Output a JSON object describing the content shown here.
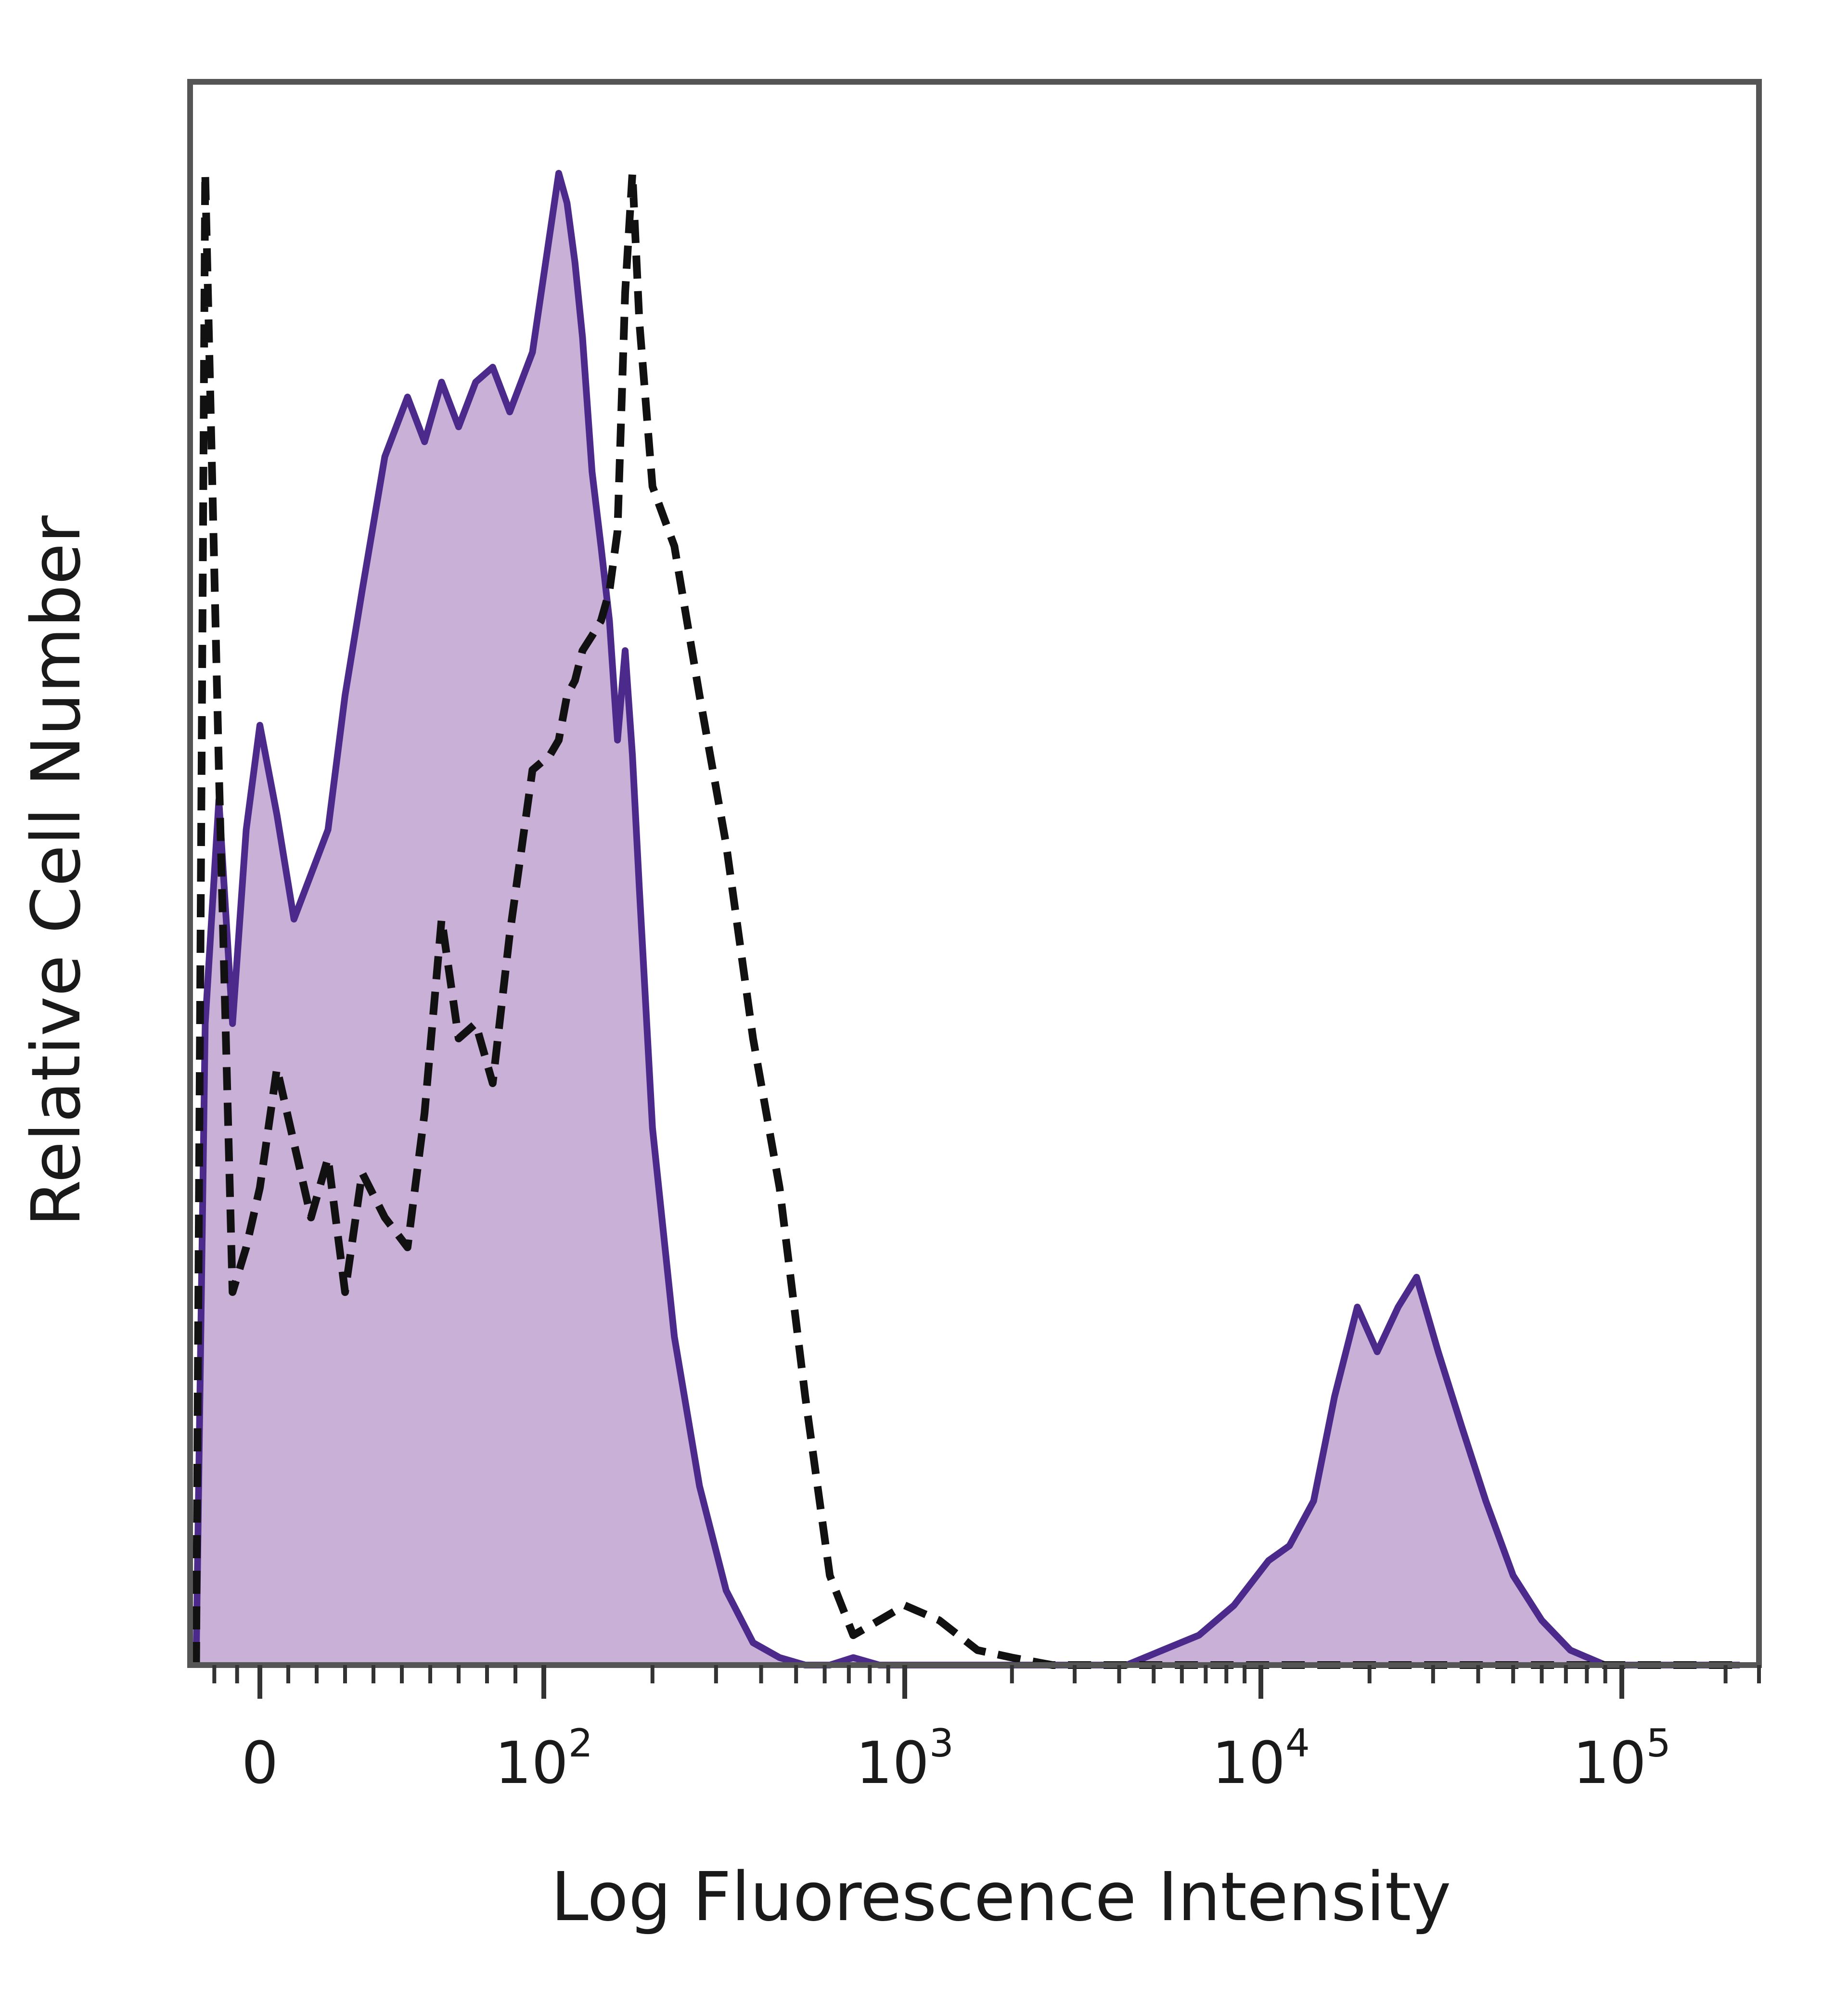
{
  "chart_data": {
    "type": "area",
    "title": "",
    "xlabel": "Log Fluorescence Intensity",
    "ylabel": "Relative Cell Number",
    "x_scale": "biexponential",
    "xlim": [
      -30,
      250000
    ],
    "ylim": [
      0,
      100
    ],
    "grid": false,
    "legend": "none",
    "x_ticks": [
      {
        "value": 0,
        "base": "0",
        "exp": ""
      },
      {
        "value": 100,
        "base": "10",
        "exp": "2"
      },
      {
        "value": 1000,
        "base": "10",
        "exp": "3"
      },
      {
        "value": 10000,
        "base": "10",
        "exp": "4"
      },
      {
        "value": 100000,
        "base": "10",
        "exp": "5"
      }
    ],
    "series": [
      {
        "style": "filled-solid",
        "line_color": "#4b2a8c",
        "fill_color": "#c9b0d6",
        "x": [
          -28,
          -24,
          -18,
          -12,
          -6,
          0,
          6,
          12,
          18,
          24,
          30,
          36,
          44,
          52,
          58,
          64,
          70,
          76,
          82,
          88,
          96,
          104,
          110,
          116,
          122,
          128,
          136,
          144,
          152,
          160,
          168,
          176,
          184,
          200,
          230,
          270,
          320,
          380,
          450,
          530,
          620,
          720,
          850,
          1000,
          1250,
          1600,
          2000,
          2600,
          3300,
          4200,
          5300,
          6700,
          8400,
          10500,
          12000,
          14000,
          16000,
          18500,
          21000,
          24000,
          27000,
          31000,
          36000,
          42000,
          50000,
          60000,
          72000,
          90000,
          120000,
          160000,
          220000
        ],
        "y": [
          0,
          43,
          58,
          43,
          56,
          63,
          57,
          50,
          53,
          56,
          65,
          72,
          81,
          85,
          82,
          86,
          83,
          86,
          87,
          84,
          88,
          96,
          100,
          98,
          94,
          89,
          80,
          75,
          70,
          62,
          68,
          61,
          52,
          36,
          22,
          12,
          5,
          1.5,
          0.5,
          0,
          0,
          0.5,
          0,
          0,
          0,
          0,
          0,
          0,
          0,
          0,
          1,
          2,
          4,
          7,
          8,
          11,
          18,
          24,
          21,
          24,
          26,
          21,
          16,
          11,
          6,
          3,
          1,
          0,
          0,
          0,
          0
        ]
      },
      {
        "style": "dashed",
        "line_color": "#111111",
        "x": [
          -28,
          -24,
          -18,
          -12,
          -6,
          0,
          6,
          12,
          18,
          24,
          30,
          36,
          44,
          52,
          58,
          64,
          70,
          76,
          82,
          88,
          96,
          104,
          110,
          116,
          122,
          128,
          136,
          144,
          152,
          160,
          168,
          176,
          184,
          200,
          230,
          270,
          320,
          380,
          450,
          530,
          620,
          720,
          850,
          1000,
          1250,
          1600,
          2000,
          2600,
          3300,
          4200,
          5300,
          6700,
          8400,
          10500,
          14000,
          20000,
          30000,
          50000,
          80000,
          130000,
          220000
        ],
        "y": [
          0,
          100,
          60,
          25,
          28,
          32,
          40,
          35,
          30,
          34,
          25,
          33,
          30,
          28,
          37,
          50,
          42,
          43,
          39,
          49,
          60,
          61,
          62,
          65,
          66,
          68,
          69,
          70,
          72,
          76,
          92,
          100,
          90,
          79,
          75,
          65,
          55,
          42,
          32,
          18,
          6,
          2,
          3,
          4,
          3,
          1,
          0.5,
          0,
          0,
          0,
          0,
          0,
          0,
          0,
          0,
          0,
          0,
          0,
          0,
          0,
          0
        ]
      }
    ]
  }
}
